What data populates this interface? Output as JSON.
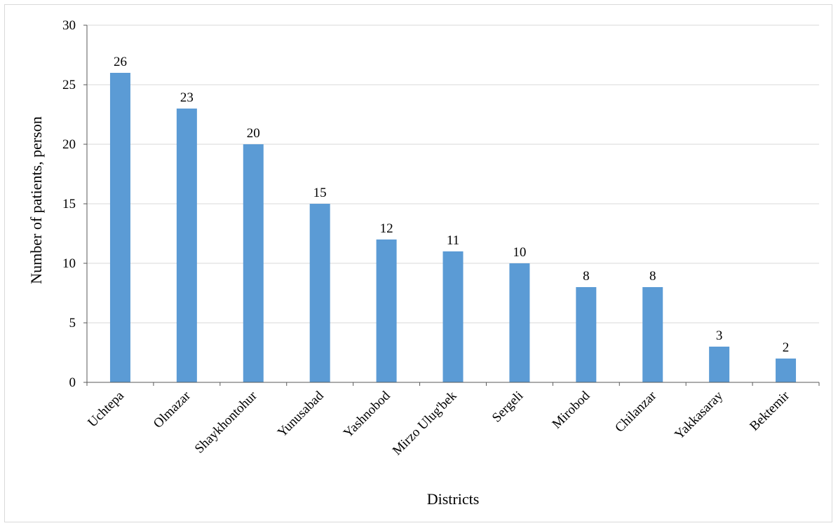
{
  "chart_data": {
    "type": "bar",
    "categories": [
      "Uchtepa",
      "Olmazar",
      "Shaykhontohur",
      "Yunusabad",
      "Yashnobod",
      "Mirzo Ulug'bek",
      "Sergeli",
      "Mirobod",
      "Chilanzar",
      "Yakkasaray",
      "Bektemir"
    ],
    "values": [
      26,
      23,
      20,
      15,
      12,
      11,
      10,
      8,
      8,
      3,
      2
    ],
    "data_labels": [
      "26",
      "23",
      "20",
      "15",
      "12",
      "11",
      "10",
      "8",
      "8",
      "3",
      "2"
    ],
    "title": "",
    "xlabel": "Districts",
    "ylabel": "Number of patients, person",
    "ylim": [
      0,
      30
    ],
    "yticks": [
      0,
      5,
      10,
      15,
      20,
      25,
      30
    ],
    "ytick_labels": [
      "0",
      "5",
      "10",
      "15",
      "20",
      "25",
      "30"
    ],
    "grid": true,
    "legend": "none",
    "bar_color": "#5b9bd5",
    "grid_color": "#d9d9d9",
    "axis_color": "#595959"
  }
}
